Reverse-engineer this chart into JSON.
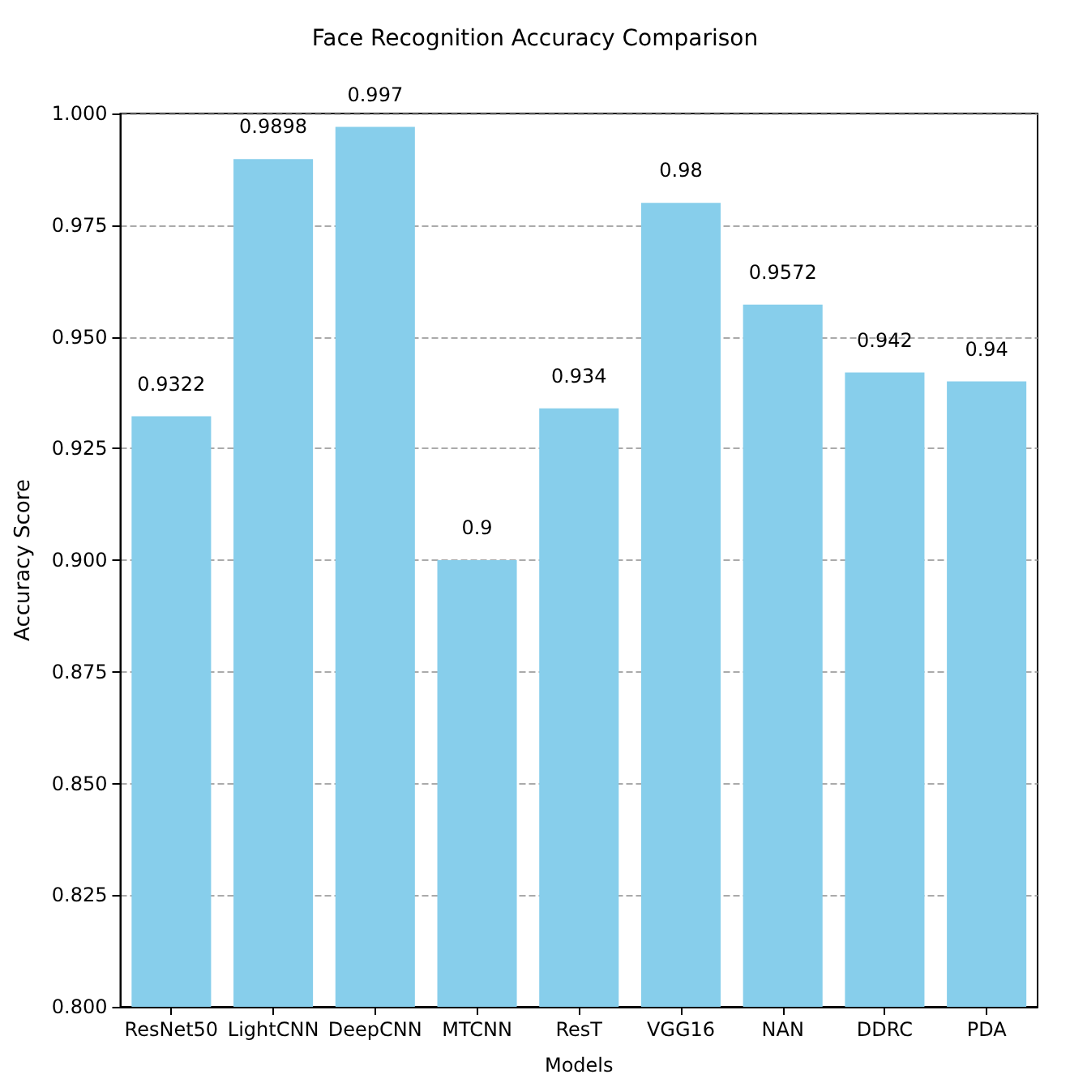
{
  "chart_data": {
    "type": "bar",
    "title": "Face Recognition Accuracy Comparison",
    "xlabel": "Models",
    "ylabel": "Accuracy Score",
    "categories": [
      "ResNet50",
      "LightCNN",
      "DeepCNN",
      "MTCNN",
      "ResT",
      "VGG16",
      "NAN",
      "DDRC",
      "PDA"
    ],
    "values": [
      0.9322,
      0.9898,
      0.997,
      0.9,
      0.934,
      0.98,
      0.9572,
      0.942,
      0.94
    ],
    "color": "#87ceeb",
    "data_labels": true,
    "grid": "y",
    "ylim": [
      0.8,
      1.0
    ],
    "yticks": [
      {
        "value": 0.8,
        "label": "0.800"
      },
      {
        "value": 0.825,
        "label": "0.825"
      },
      {
        "value": 0.85,
        "label": "0.850"
      },
      {
        "value": 0.875,
        "label": "0.875"
      },
      {
        "value": 0.9,
        "label": "0.900"
      },
      {
        "value": 0.925,
        "label": "0.925"
      },
      {
        "value": 0.95,
        "label": "0.950"
      },
      {
        "value": 0.975,
        "label": "0.975"
      },
      {
        "value": 1.0,
        "label": "1.000"
      }
    ]
  }
}
